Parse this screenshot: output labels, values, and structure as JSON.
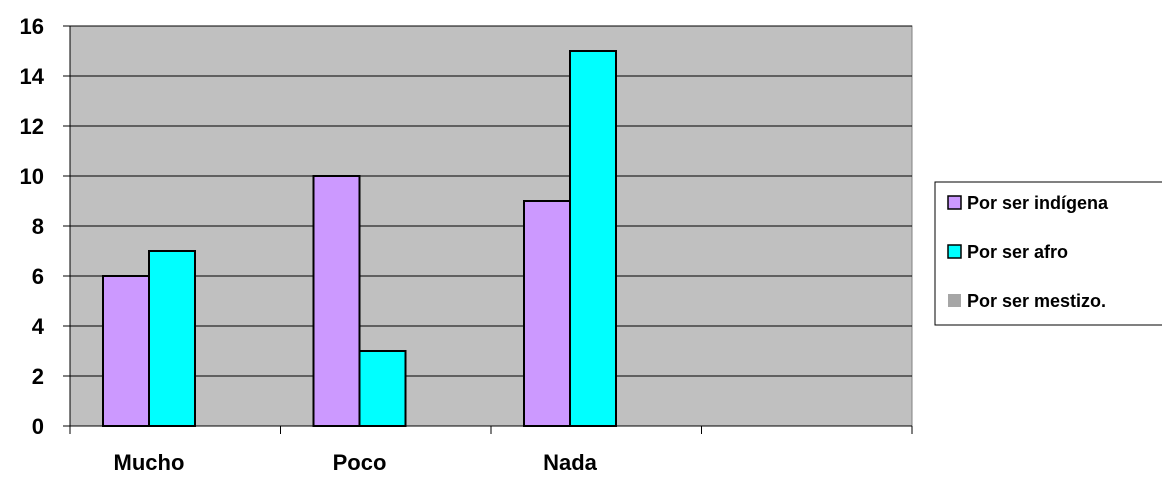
{
  "chart_data": {
    "type": "bar",
    "title": "",
    "xlabel": "",
    "ylabel": "",
    "categories": [
      "Mucho",
      "Poco",
      "Nada",
      ""
    ],
    "series": [
      {
        "name": "Por ser indígena",
        "color": "#cc99ff",
        "values": [
          6,
          10,
          9,
          null
        ]
      },
      {
        "name": "Por ser afro",
        "color": "#00ffff",
        "values": [
          7,
          3,
          15,
          null
        ]
      },
      {
        "name": "Por ser mestizo.",
        "color": "#a6a6a6",
        "values": [
          null,
          null,
          null,
          null
        ]
      }
    ],
    "ylim": [
      0,
      16
    ],
    "yticks": [
      "0",
      "2",
      "4",
      "6",
      "8",
      "10",
      "12",
      "14",
      "16"
    ],
    "grid": true,
    "legend_position": "right",
    "plot_background": "#c0c0c0"
  }
}
